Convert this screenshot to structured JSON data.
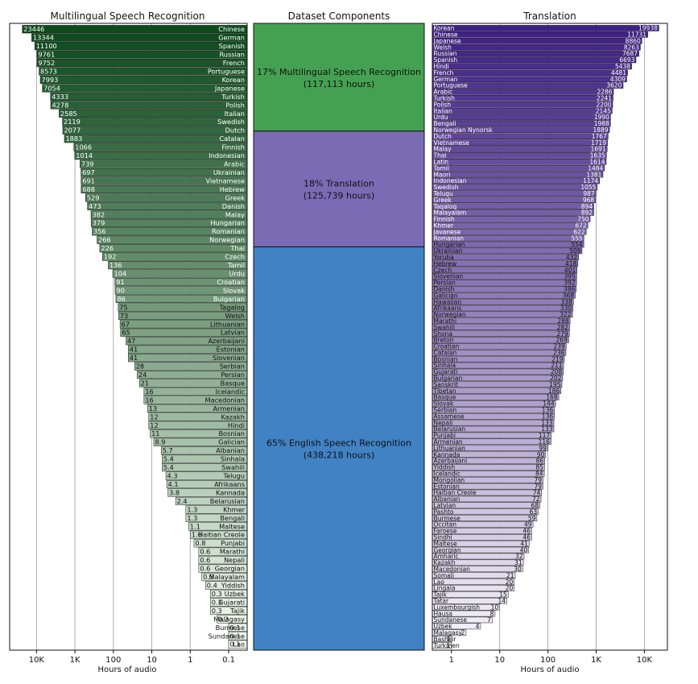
{
  "chart_data": [
    {
      "type": "bar",
      "orientation": "horizontal",
      "title": "Multilingual Speech Recognition",
      "xlabel": "Hours of audio",
      "xscale": "log",
      "xaxis_reversed": true,
      "xlim": [
        0.033,
        50000
      ],
      "xticks": [
        10000,
        1000,
        100,
        10,
        1,
        0.1
      ],
      "xtick_labels": [
        "10K",
        "1K",
        "100",
        "10",
        "1",
        "0.1"
      ],
      "color_ramp": [
        "#0d4a1c",
        "#f2fbef"
      ],
      "categories": [
        "Chinese",
        "German",
        "Spanish",
        "Russian",
        "French",
        "Portuguese",
        "Korean",
        "Japanese",
        "Turkish",
        "Polish",
        "Italian",
        "Swedish",
        "Dutch",
        "Catalan",
        "Finnish",
        "Indonesian",
        "Arabic",
        "Ukrainian",
        "Vietnamese",
        "Hebrew",
        "Greek",
        "Danish",
        "Malay",
        "Hungarian",
        "Romanian",
        "Norwegian",
        "Thai",
        "Czech",
        "Tamil",
        "Urdu",
        "Croatian",
        "Slovak",
        "Bulgarian",
        "Tagalog",
        "Welsh",
        "Lithuanian",
        "Latvian",
        "Azerbaijani",
        "Estonian",
        "Slovenian",
        "Serbian",
        "Persian",
        "Basque",
        "Icelandic",
        "Macedonian",
        "Armenian",
        "Kazakh",
        "Hindi",
        "Bosnian",
        "Galician",
        "Albanian",
        "Sinhala",
        "Swahili",
        "Telugu",
        "Afrikaans",
        "Kannada",
        "Belarusian",
        "Khmer",
        "Bengali",
        "Maltese",
        "Haitian Creole",
        "Punjabi",
        "Marathi",
        "Nepali",
        "Georgian",
        "Malayalam",
        "Yiddish",
        "Uzbek",
        "Gujarati",
        "Tajik",
        "Malagasy",
        "Burmese",
        "Sundanese",
        "Lao"
      ],
      "values": [
        23446,
        13344,
        11100,
        9761,
        9752,
        8573,
        7993,
        7054,
        4333,
        4278,
        2585,
        2119,
        2077,
        1883,
        1066,
        1014,
        739,
        697,
        691,
        688,
        529,
        473,
        382,
        379,
        356,
        266,
        226,
        192,
        136,
        104,
        91,
        90,
        86,
        75,
        73,
        67,
        65,
        47,
        41,
        41,
        28,
        24,
        21,
        16,
        16,
        13,
        12,
        12,
        11,
        8.9,
        5.7,
        5.4,
        5.4,
        4.3,
        4.1,
        3.8,
        2.4,
        1.3,
        1.3,
        1.1,
        1.0,
        0.8,
        0.6,
        0.6,
        0.6,
        0.5,
        0.4,
        0.3,
        0.3,
        0.3,
        0.2,
        0.1,
        0.1,
        0.1
      ],
      "value_labels": [
        "23446",
        "13344",
        "11100",
        "9761",
        "9752",
        "8573",
        "7993",
        "7054",
        "4333",
        "4278",
        "2585",
        "2119",
        "2077",
        "1883",
        "1066",
        "1014",
        "739",
        "697",
        "691",
        "688",
        "529",
        "473",
        "382",
        "379",
        "356",
        "266",
        "226",
        "192",
        "136",
        "104",
        "91",
        "90",
        "86",
        "75",
        "73",
        "67",
        "65",
        "47",
        "41",
        "41",
        "28",
        "24",
        "21",
        "16",
        "16",
        "13",
        "12",
        "12",
        "11",
        "8.9",
        "5.7",
        "5.4",
        "5.4",
        "4.3",
        "4.1",
        "3.8",
        "2.4",
        "1.3",
        "1.3",
        "1.1",
        "1.0",
        "0.8",
        "0.6",
        "0.6",
        "0.6",
        "0.5",
        "0.4",
        "0.3",
        "0.3",
        "0.3",
        "0.2",
        "0.1",
        "0.1",
        "0.1"
      ]
    },
    {
      "type": "bar",
      "stacked": true,
      "title": "Dataset Components",
      "segments": [
        {
          "label": "17% Multilingual Speech Recognition",
          "detail": "(117,113 hours)",
          "hours": 117113,
          "color": "#45a152"
        },
        {
          "label": "18% Translation",
          "detail": "(125,739 hours)",
          "hours": 125739,
          "color": "#7b6bb5"
        },
        {
          "label": "65% English Speech Recognition",
          "detail": "(438,218 hours)",
          "hours": 438218,
          "color": "#4082c4"
        }
      ]
    },
    {
      "type": "bar",
      "orientation": "horizontal",
      "title": "Translation",
      "xlabel": "Hours of audio",
      "xscale": "log",
      "xlim": [
        0.4,
        30000
      ],
      "xticks": [
        1,
        10,
        100,
        1000,
        10000
      ],
      "xtick_labels": [
        "1",
        "10",
        "100",
        "1K",
        "10K"
      ],
      "color_ramp": [
        "#3f1f86",
        "#f5f4fa"
      ],
      "categories": [
        "Korean",
        "Chinese",
        "Japanese",
        "Welsh",
        "Russian",
        "Spanish",
        "Hindi",
        "French",
        "German",
        "Portuguese",
        "Arabic",
        "Turkish",
        "Polish",
        "Italian",
        "Urdu",
        "Bengali",
        "Norwegian Nynorsk",
        "Dutch",
        "Vietnamese",
        "Malay",
        "Thai",
        "Latin",
        "Tamil",
        "Maori",
        "Indonesian",
        "Swedish",
        "Telugu",
        "Greek",
        "Tagalog",
        "Malayalam",
        "Finnish",
        "Khmer",
        "Javanese",
        "Romanian",
        "Hungarian",
        "Ukrainian",
        "Yoruba",
        "Hebrew",
        "Czech",
        "Slovenian",
        "Persian",
        "Danish",
        "Galician",
        "Hawaiian",
        "Afrikaans",
        "Norwegian",
        "Marathi",
        "Swahili",
        "Shona",
        "Breton",
        "Croatian",
        "Catalan",
        "Bosnian",
        "Sinhala",
        "Gujarati",
        "Bulgarian",
        "Sanskrit",
        "Tibetan",
        "Basque",
        "Slovak",
        "Serbian",
        "Assamese",
        "Nepali",
        "Belarusian",
        "Punjabi",
        "Armenian",
        "Lithuanian",
        "Kannada",
        "Azerbaijani",
        "Yiddish",
        "Icelandic",
        "Mongolian",
        "Estonian",
        "Haitian Creole",
        "Albanian",
        "Latvian",
        "Pashto",
        "Burmese",
        "Occitan",
        "Faroese",
        "Sindhi",
        "Maltese",
        "Georgian",
        "Amharic",
        "Kazakh",
        "Macedonian",
        "Somali",
        "Lao",
        "Lingala",
        "Tajik",
        "Tatar",
        "Luxembourgish",
        "Hausa",
        "Sundanese",
        "Uzbek",
        "Malagasy",
        "Bashkir",
        "Turkmen"
      ],
      "values": [
        19938,
        11731,
        8860,
        8263,
        7687,
        6693,
        5438,
        4481,
        4309,
        3620,
        2286,
        2241,
        2200,
        2145,
        1990,
        1988,
        1889,
        1767,
        1719,
        1691,
        1635,
        1614,
        1484,
        1381,
        1174,
        1055,
        987,
        968,
        894,
        892,
        750,
        672,
        622,
        555,
        554,
        509,
        432,
        418,
        401,
        395,
        392,
        386,
        368,
        338,
        330,
        322,
        288,
        282,
        279,
        269,
        239,
        236,
        219,
        211,
        208,
        202,
        195,
        186,
        168,
        144,
        136,
        136,
        133,
        133,
        117,
        116,
        99,
        90,
        86,
        85,
        84,
        79,
        79,
        74,
        72,
        68,
        63,
        59,
        49,
        46,
        46,
        41,
        40,
        32,
        31,
        30,
        21,
        20,
        20,
        15,
        14,
        10,
        8,
        7,
        4,
        2,
        1,
        1
      ],
      "value_labels": [
        "19938",
        "11731",
        "8860",
        "8263",
        "7687",
        "6693",
        "5438",
        "4481",
        "4309",
        "3620",
        "2286",
        "2241",
        "2200",
        "2145",
        "1990",
        "1988",
        "1889",
        "1767",
        "1719",
        "1691",
        "1635",
        "1614",
        "1484",
        "1381",
        "1174",
        "1055",
        "987",
        "968",
        "894",
        "892",
        "750",
        "672",
        "622",
        "555",
        "554",
        "509",
        "432",
        "418",
        "401",
        "395",
        "392",
        "386",
        "368",
        "338",
        "330",
        "322",
        "288",
        "282",
        "279",
        "269",
        "239",
        "236",
        "219",
        "211",
        "208",
        "202",
        "195",
        "186",
        "168",
        "144",
        "136",
        "136",
        "133",
        "133",
        "117",
        "116",
        "99",
        "90",
        "86",
        "85",
        "84",
        "79",
        "79",
        "74",
        "72",
        "68",
        "63",
        "59",
        "49",
        "46",
        "46",
        "41",
        "40",
        "32",
        "31",
        "30",
        "21",
        "20",
        "20",
        "15",
        "14",
        "10",
        "8",
        "7",
        "4",
        "2",
        "1",
        "1"
      ]
    }
  ]
}
